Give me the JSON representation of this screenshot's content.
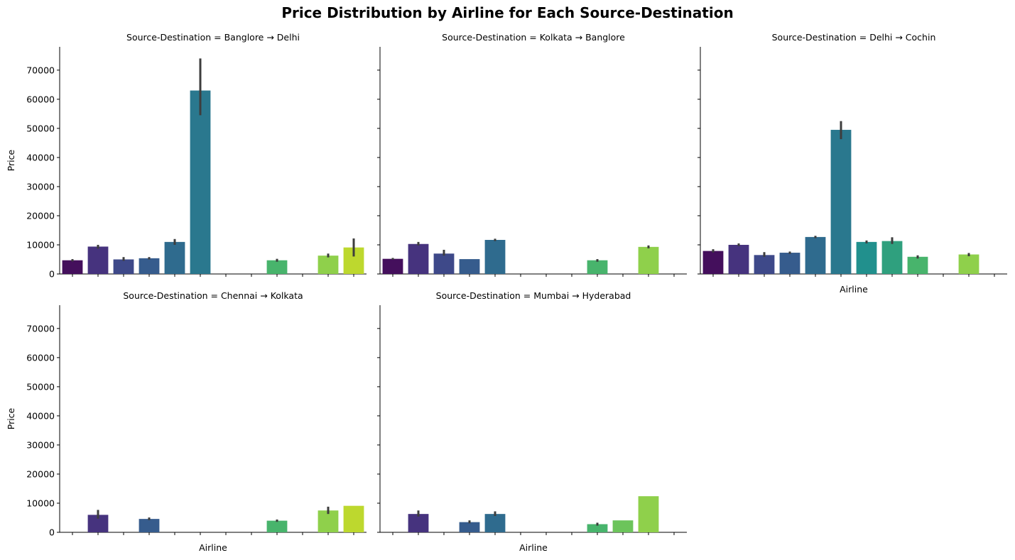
{
  "title": "Price Distribution by Airline for Each Source-Destination",
  "xlabel": "Airline",
  "ylabel": "Price",
  "chart_data": {
    "type": "bar",
    "title": "Price Distribution by Airline for Each Source-Destination",
    "xlabel": "Airline",
    "ylabel": "Price",
    "ylim": [
      0,
      78000
    ],
    "yticks": [
      0,
      10000,
      20000,
      30000,
      40000,
      50000,
      60000,
      70000
    ],
    "categories_count": 12,
    "palette": [
      "#440f5c",
      "#46337e",
      "#3e4989",
      "#365c8d",
      "#2f6b8e",
      "#2a788e",
      "#21908d",
      "#2fa07e",
      "#48b46c",
      "#6cc45b",
      "#8fd04b",
      "#bdd82e"
    ],
    "grid": false,
    "panels": [
      {
        "title": "Source-Destination = Banglore → Delhi",
        "values": [
          4700,
          9400,
          5000,
          5400,
          11000,
          63000,
          null,
          null,
          4700,
          null,
          6300,
          9100
        ],
        "error_low": [
          4300,
          8700,
          4500,
          5000,
          10000,
          54500,
          null,
          null,
          4200,
          null,
          5700,
          6000
        ],
        "error_high": [
          5100,
          10000,
          5800,
          5800,
          12000,
          74000,
          null,
          null,
          5200,
          null,
          7000,
          12200
        ]
      },
      {
        "title": "Source-Destination = Kolkata → Banglore",
        "values": [
          5200,
          10300,
          7000,
          5100,
          11700,
          null,
          null,
          null,
          4700,
          null,
          9300,
          null
        ],
        "error_low": [
          4900,
          9800,
          6300,
          null,
          11300,
          null,
          null,
          null,
          4200,
          null,
          8800,
          null
        ],
        "error_high": [
          5500,
          11000,
          8300,
          null,
          12100,
          null,
          null,
          null,
          5100,
          null,
          9800,
          null
        ]
      },
      {
        "title": "Source-Destination = Delhi → Cochin",
        "values": [
          7900,
          10000,
          6500,
          7300,
          12700,
          49500,
          11000,
          11300,
          5900,
          null,
          6700,
          null
        ],
        "error_low": [
          7400,
          9600,
          5900,
          6900,
          12300,
          46300,
          10500,
          10300,
          5300,
          null,
          6100,
          null
        ],
        "error_high": [
          8500,
          10500,
          7500,
          7700,
          13100,
          52500,
          11500,
          12600,
          6400,
          null,
          7200,
          null
        ]
      },
      {
        "title": "Source-Destination = Chennai → Kolkata",
        "values": [
          null,
          6000,
          null,
          4600,
          null,
          null,
          null,
          null,
          4000,
          null,
          7500,
          9100
        ],
        "error_low": [
          null,
          4700,
          null,
          4200,
          null,
          null,
          null,
          null,
          3600,
          null,
          6300,
          null
        ],
        "error_high": [
          null,
          7700,
          null,
          5100,
          null,
          null,
          null,
          null,
          4400,
          null,
          8800,
          null
        ]
      },
      {
        "title": "Source-Destination = Mumbai → Hyderabad",
        "values": [
          null,
          6300,
          null,
          3500,
          6300,
          null,
          null,
          null,
          2800,
          4100,
          12400,
          null
        ],
        "error_low": [
          null,
          5400,
          null,
          3100,
          5600,
          null,
          null,
          null,
          2300,
          null,
          null,
          null
        ],
        "error_high": [
          null,
          7500,
          null,
          4100,
          7200,
          null,
          null,
          null,
          3300,
          null,
          null,
          null
        ]
      }
    ]
  }
}
